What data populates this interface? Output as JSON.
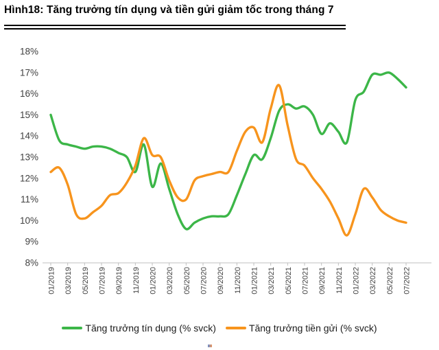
{
  "page": {
    "title": "Hình18: Tăng  trưởng tín dụng và tiền gửi giảm tốc trong tháng 7"
  },
  "chart_data": {
    "type": "line",
    "title": "Hình18: Tăng  trưởng tín dụng và tiền gửi giảm tốc trong tháng 7",
    "xlabel": "",
    "ylabel": "",
    "ylim": [
      8,
      18
    ],
    "ytick_step": 1,
    "ytick_labels": [
      "18%",
      "17%",
      "16%",
      "15%",
      "14%",
      "13%",
      "12%",
      "11%",
      "10%",
      "9%",
      "8%"
    ],
    "grid": false,
    "legend_position": "bottom",
    "x": [
      "01/2019",
      "02/2019",
      "03/2019",
      "04/2019",
      "05/2019",
      "06/2019",
      "07/2019",
      "08/2019",
      "09/2019",
      "10/2019",
      "11/2019",
      "12/2019",
      "01/2020",
      "02/2020",
      "03/2020",
      "04/2020",
      "05/2020",
      "06/2020",
      "07/2020",
      "08/2020",
      "09/2020",
      "10/2020",
      "11/2020",
      "12/2020",
      "01/2021",
      "02/2021",
      "03/2021",
      "04/2021",
      "05/2021",
      "06/2021",
      "07/2021",
      "08/2021",
      "09/2021",
      "10/2021",
      "11/2021",
      "12/2021",
      "01/2022",
      "02/2022",
      "03/2022",
      "04/2022",
      "05/2022",
      "06/2022",
      "07/2022"
    ],
    "xtick_labels": [
      "01/2019",
      "03/2019",
      "05/2019",
      "07/2019",
      "09/2019",
      "11/2019",
      "01/2020",
      "03/2020",
      "05/2020",
      "07/2020",
      "09/2020",
      "11/2020",
      "01/2021",
      "03/2021",
      "05/2021",
      "07/2021",
      "09/2021",
      "11/2021",
      "01/2022",
      "03/2022",
      "05/2022",
      "07/2022"
    ],
    "series": [
      {
        "name": "Tăng trưởng tín dụng (% svck)",
        "color": "#3cb648",
        "values": [
          15.0,
          13.8,
          13.6,
          13.5,
          13.4,
          13.5,
          13.5,
          13.4,
          13.2,
          13.0,
          12.3,
          13.6,
          11.6,
          12.7,
          11.5,
          10.3,
          9.6,
          9.9,
          10.1,
          10.2,
          10.2,
          10.3,
          11.2,
          12.2,
          13.1,
          12.9,
          13.9,
          15.2,
          15.5,
          15.3,
          15.4,
          15.0,
          14.1,
          14.6,
          14.2,
          13.7,
          15.7,
          16.1,
          16.9,
          16.9,
          17.0,
          16.7,
          16.3
        ]
      },
      {
        "name": "Tăng trưởng tiền gửi (% svck)",
        "color": "#f7941d",
        "values": [
          12.3,
          12.5,
          11.7,
          10.3,
          10.1,
          10.4,
          10.7,
          11.2,
          11.3,
          11.8,
          12.6,
          13.9,
          13.1,
          13.0,
          11.9,
          11.1,
          11.0,
          11.9,
          12.1,
          12.2,
          12.3,
          12.3,
          13.3,
          14.2,
          14.4,
          13.7,
          15.3,
          16.4,
          14.5,
          12.9,
          12.6,
          12.0,
          11.5,
          10.9,
          10.1,
          9.3,
          10.3,
          11.5,
          11.1,
          10.5,
          10.2,
          10.0,
          9.9
        ]
      }
    ],
    "axis_color": "#bfbfbf",
    "tick_label_color": "#404040"
  }
}
